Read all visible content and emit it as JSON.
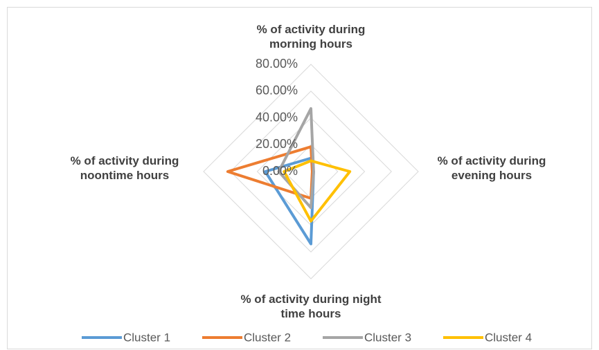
{
  "chart_data": {
    "type": "radar",
    "categories": [
      "% of activity during morning hours",
      "% of activity during evening hours",
      "% of activity during night time hours",
      "% of activity during noontime hours"
    ],
    "series": [
      {
        "name": "Cluster 1",
        "color": "#5b9bd5",
        "values": [
          10,
          2,
          54,
          34
        ]
      },
      {
        "name": "Cluster 2",
        "color": "#ed7d31",
        "values": [
          18.5,
          1,
          20,
          62
        ]
      },
      {
        "name": "Cluster 3",
        "color": "#a5a5a5",
        "values": [
          47,
          2,
          27,
          24
        ]
      },
      {
        "name": "Cluster 4",
        "color": "#ffc000",
        "values": [
          8,
          29,
          37,
          20
        ]
      }
    ],
    "rlim": [
      0,
      80
    ],
    "rticks": [
      {
        "value": 0,
        "label": "0.00%"
      },
      {
        "value": 20,
        "label": "20.00%"
      },
      {
        "value": 40,
        "label": "40.00%"
      },
      {
        "value": 60,
        "label": "60.00%"
      },
      {
        "value": 80,
        "label": "80.00%"
      }
    ],
    "grid": true,
    "legend": "bottom"
  }
}
